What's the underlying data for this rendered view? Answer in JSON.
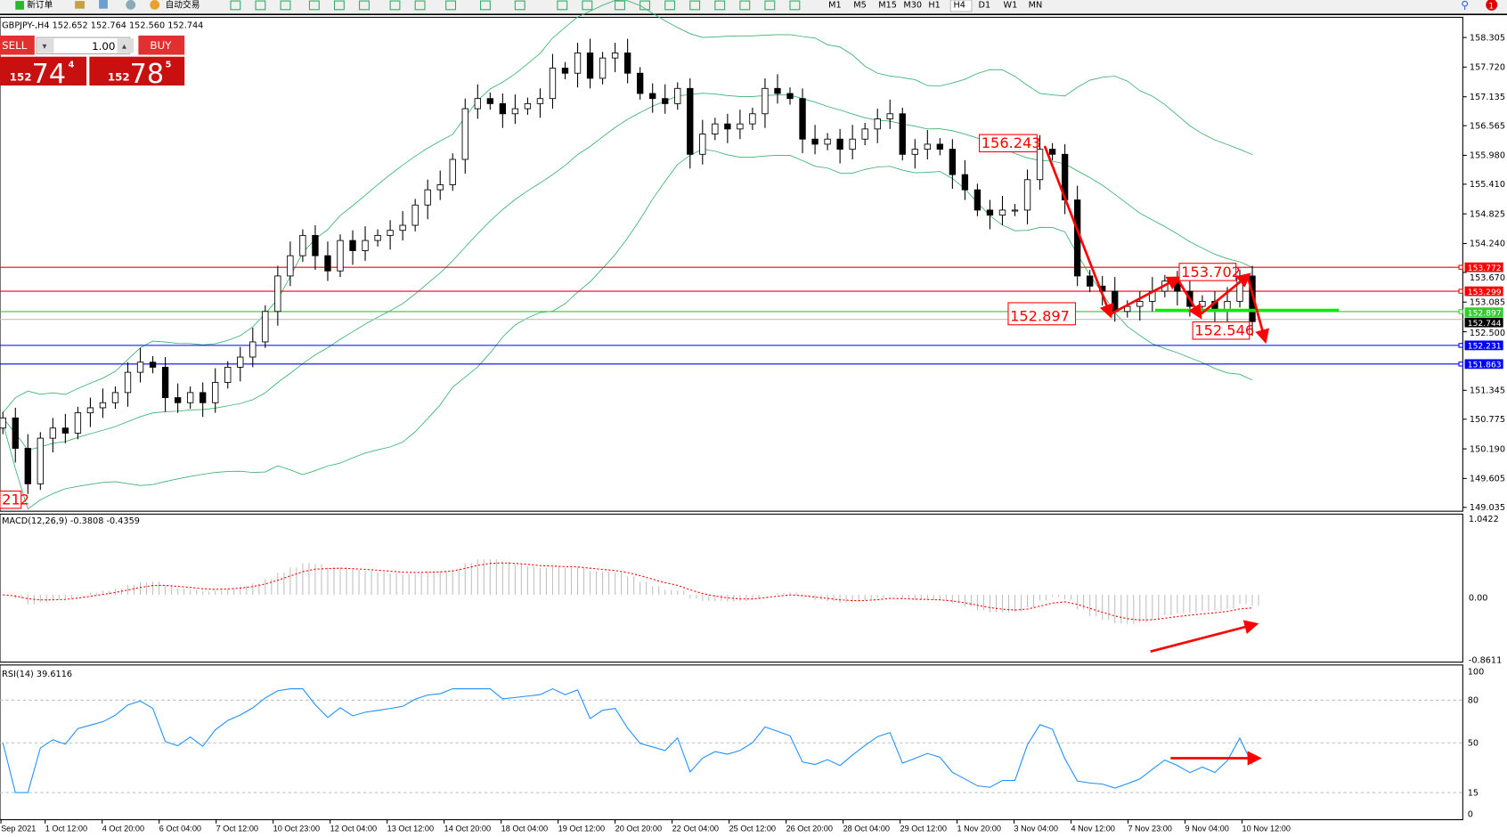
{
  "toolbar": {
    "new_order": "新订单",
    "auto_trading": "自动交易",
    "timeframes": [
      "M1",
      "M5",
      "M15",
      "M30",
      "H1",
      "H4",
      "D1",
      "W1",
      "MN"
    ],
    "active_timeframe": "H4",
    "notification_count": "1"
  },
  "chart": {
    "header": "GBPJPY-,H4  152.652 152.764 152.560 152.744",
    "symbol": "GBPJPY-",
    "timeframe": "H4"
  },
  "one_click": {
    "sell_label": "SELL",
    "buy_label": "BUY",
    "volume": "1.00",
    "sell_big": "152",
    "sell_main": "74",
    "sell_sup": "4",
    "buy_big": "152",
    "buy_main": "78",
    "buy_sup": "5"
  },
  "price_axis": [
    "158.305",
    "157.720",
    "157.135",
    "156.565",
    "155.980",
    "155.410",
    "154.825",
    "154.240",
    "153.670",
    "153.085",
    "152.500",
    "151.345",
    "150.775",
    "150.190",
    "149.605",
    "149.035"
  ],
  "levels": [
    {
      "price": "153.772",
      "color": "#ff0000"
    },
    {
      "price": "153.299",
      "color": "#ff0000"
    },
    {
      "price": "152.897",
      "color": "#33cc33"
    },
    {
      "price": "152.744",
      "color": "#000000",
      "line": "#c0c0c0"
    },
    {
      "price": "152.231",
      "color": "#0000ff"
    },
    {
      "price": "151.863",
      "color": "#0000ff"
    }
  ],
  "annotations": [
    "156.243",
    "153.702",
    "152.897",
    "152.546",
    "212"
  ],
  "macd": {
    "label": "MACD(12,26,9) -0.3808 -0.4359",
    "axis": [
      "1.0422",
      "0.00",
      "-0.8611"
    ]
  },
  "rsi": {
    "label": "RSI(14) 39.6116",
    "axis": [
      "100",
      "80",
      "50",
      "15",
      "0"
    ]
  },
  "dates": [
    "Sep 2021",
    "1 Oct 12:00",
    "4 Oct 20:00",
    "6 Oct 04:00",
    "7 Oct 12:00",
    "10 Oct 23:00",
    "12 Oct 04:00",
    "13 Oct 12:00",
    "14 Oct 20:00",
    "18 Oct 04:00",
    "19 Oct 12:00",
    "20 Oct 20:00",
    "22 Oct 04:00",
    "25 Oct 12:00",
    "26 Oct 20:00",
    "28 Oct 04:00",
    "29 Oct 12:00",
    "1 Nov 20:00",
    "3 Nov 04:00",
    "4 Nov 12:00",
    "7 Nov 23:00",
    "9 Nov 04:00",
    "10 Nov 12:00"
  ],
  "colors": {
    "bands": "#3cb371",
    "drawing": "#ff0000",
    "rsi": "#1e90ff",
    "macd_signal": "#ff0000",
    "macd_hist": "#c0c0c0",
    "support": "#00ee00"
  },
  "chart_data": {
    "type": "candlestick",
    "ylim": [
      149.035,
      158.305
    ],
    "closes": [
      150.8,
      150.2,
      149.5,
      150.4,
      150.6,
      150.5,
      150.9,
      151.0,
      151.1,
      151.3,
      151.7,
      151.9,
      151.8,
      151.2,
      151.1,
      151.3,
      151.1,
      151.5,
      151.8,
      152.0,
      152.3,
      152.9,
      153.6,
      154.0,
      154.4,
      154.0,
      153.7,
      154.3,
      154.1,
      154.3,
      154.4,
      154.5,
      154.6,
      155.0,
      155.3,
      155.4,
      155.9,
      156.9,
      157.1,
      157.0,
      156.8,
      156.9,
      157.0,
      157.1,
      157.7,
      157.6,
      158.0,
      157.5,
      157.9,
      158.0,
      157.6,
      157.2,
      157.1,
      157.0,
      157.3,
      156.0,
      156.4,
      156.6,
      156.5,
      156.6,
      156.8,
      157.3,
      157.2,
      157.1,
      156.3,
      156.2,
      156.3,
      156.1,
      156.3,
      156.5,
      156.7,
      156.8,
      156.0,
      156.1,
      156.2,
      156.1,
      155.6,
      155.3,
      154.9,
      154.8,
      154.9,
      154.9,
      155.5,
      156.1,
      156.0,
      155.1,
      153.6,
      153.4,
      153.3,
      152.9,
      153.0,
      153.1,
      153.3,
      153.5,
      153.3,
      153.0,
      153.1,
      152.9,
      153.1,
      153.6,
      152.7
    ]
  }
}
